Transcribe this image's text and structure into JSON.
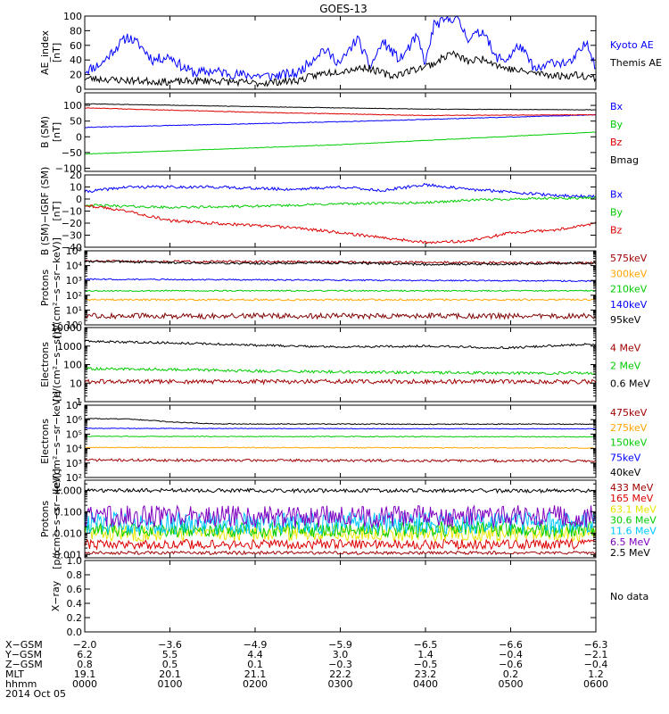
{
  "title": "GOES-13",
  "colors": {
    "black": "#000000",
    "blue": "#0000ff",
    "green": "#00cc00",
    "red": "#dd0000",
    "darkred": "#a00000",
    "orange": "#ffa500",
    "yellow": "#e6e600",
    "cyan": "#00c8ff",
    "purple": "#8000c0",
    "maroon": "#800000"
  },
  "chart_data": [
    {
      "type": "line",
      "id": "ae",
      "ylabel": "AE_index\n[nT]",
      "yscale": "linear",
      "ylim": [
        0,
        100
      ],
      "yticks": [
        0,
        20,
        40,
        60,
        80,
        100
      ],
      "ytick_labels": [
        "0",
        "20",
        "40",
        "60",
        "80",
        "100"
      ],
      "series": [
        {
          "name": "Kyoto AE",
          "color": "blue",
          "x": [
            0,
            0.2,
            0.35,
            0.5,
            0.65,
            0.8,
            1.0,
            1.15,
            1.3,
            1.5,
            1.8,
            2.2,
            2.5,
            2.8,
            3.0,
            3.2,
            3.35,
            3.5,
            3.7,
            3.9,
            4.0,
            4.1,
            4.2,
            4.35,
            4.5,
            4.7,
            4.8,
            4.95,
            5.1,
            5.3,
            5.5,
            5.7,
            5.9,
            6.0
          ],
          "y": [
            25,
            35,
            55,
            72,
            60,
            40,
            45,
            30,
            22,
            25,
            20,
            18,
            22,
            55,
            35,
            70,
            30,
            65,
            40,
            72,
            35,
            88,
            92,
            99,
            70,
            80,
            45,
            40,
            60,
            25,
            38,
            35,
            65,
            30
          ],
          "noise": 7,
          "seed": 11
        },
        {
          "name": "Themis AE",
          "color": "black",
          "x": [
            0,
            0.5,
            1.0,
            1.5,
            2.0,
            2.5,
            2.8,
            3.0,
            3.3,
            3.6,
            3.9,
            4.1,
            4.3,
            4.5,
            4.7,
            4.9,
            5.1,
            5.3,
            5.6,
            5.8,
            6.0
          ],
          "y": [
            15,
            12,
            10,
            12,
            8,
            12,
            22,
            25,
            30,
            18,
            28,
            35,
            50,
            38,
            42,
            30,
            25,
            22,
            18,
            20,
            15
          ],
          "noise": 5,
          "seed": 23
        }
      ]
    },
    {
      "type": "line",
      "id": "bsm",
      "ylabel": "B (SM)\n[nT]",
      "yscale": "linear",
      "ylim": [
        -110,
        140
      ],
      "yticks": [
        -100,
        -50,
        0,
        50,
        100
      ],
      "ytick_labels": [
        "−100",
        "−50",
        "0",
        "50",
        "100"
      ],
      "series": [
        {
          "name": "Bx",
          "color": "blue",
          "x": [
            0,
            3,
            6
          ],
          "y": [
            30,
            48,
            70
          ],
          "noise": 1,
          "seed": 31
        },
        {
          "name": "By",
          "color": "green",
          "x": [
            0,
            3,
            6
          ],
          "y": [
            -55,
            -25,
            15
          ],
          "noise": 0.8,
          "seed": 32
        },
        {
          "name": "Bz",
          "color": "red",
          "x": [
            0,
            2,
            4,
            6
          ],
          "y": [
            92,
            78,
            68,
            70
          ],
          "noise": 1,
          "seed": 33
        },
        {
          "name": "Bmag",
          "color": "black",
          "x": [
            0,
            2,
            4,
            6
          ],
          "y": [
            105,
            96,
            88,
            86
          ],
          "noise": 0.8,
          "seed": 34
        }
      ]
    },
    {
      "type": "line",
      "id": "dbsm",
      "ylabel": "B (SM)−IGRF (SM)\n[nT]",
      "yscale": "linear",
      "ylim": [
        -40,
        20
      ],
      "yticks": [
        -40,
        -30,
        -20,
        -10,
        0,
        10,
        20
      ],
      "ytick_labels": [
        "−40",
        "−30",
        "−20",
        "−10",
        "0",
        "10",
        "20"
      ],
      "series": [
        {
          "name": "Bx",
          "color": "blue",
          "x": [
            0,
            0.5,
            1.5,
            2.4,
            3.0,
            3.5,
            4.0,
            4.5,
            5.0,
            5.5,
            6.0
          ],
          "y": [
            6,
            10,
            10,
            8,
            10,
            7,
            12,
            8,
            6,
            3,
            2
          ],
          "noise": 1.2,
          "seed": 41
        },
        {
          "name": "By",
          "color": "green",
          "x": [
            0,
            1,
            2,
            3,
            4,
            4.5,
            5,
            6
          ],
          "y": [
            -5,
            -7,
            -6,
            -4,
            -3,
            -1,
            0,
            1
          ],
          "noise": 1.0,
          "seed": 42
        },
        {
          "name": "Bz",
          "color": "red",
          "x": [
            0,
            0.5,
            1.0,
            1.5,
            2.0,
            2.5,
            3.0,
            3.5,
            4.0,
            4.5,
            5.0,
            5.5,
            6.0
          ],
          "y": [
            -5,
            -10,
            -18,
            -20,
            -22,
            -24,
            -28,
            -32,
            -36,
            -35,
            -28,
            -26,
            -20
          ],
          "noise": 1.2,
          "seed": 43
        }
      ]
    },
    {
      "type": "line",
      "id": "protons_low",
      "ylabel": "Protons\n[p/(cm²−s−sr−keV)]",
      "yscale": "log",
      "ylim": [
        1,
        100000
      ],
      "yticks": [
        1,
        10,
        100,
        1000,
        10000,
        100000
      ],
      "ytick_labels": [
        "10⁰",
        "10¹",
        "10²",
        "10³",
        "10⁴",
        "10⁵"
      ],
      "series": [
        {
          "name": "575keV",
          "color": "darkred",
          "x": [
            0,
            6
          ],
          "y": [
            20000,
            15000
          ],
          "noise": 0.05,
          "seed": 51
        },
        {
          "name": "300keV",
          "color": "orange",
          "x": [
            0,
            6
          ],
          "y": [
            50,
            50
          ],
          "noise": 0.04,
          "seed": 52
        },
        {
          "name": "210keV",
          "color": "green",
          "x": [
            0,
            6
          ],
          "y": [
            200,
            200
          ],
          "noise": 0.03,
          "seed": 53
        },
        {
          "name": "140keV",
          "color": "blue",
          "x": [
            0,
            6
          ],
          "y": [
            1200,
            900
          ],
          "noise": 0.03,
          "seed": 54
        },
        {
          "name": "95keV",
          "color": "black",
          "x": [
            0,
            1,
            2,
            3,
            4,
            5,
            6
          ],
          "y": [
            20000,
            16000,
            14000,
            15000,
            12000,
            13000,
            15000
          ],
          "noise": 0.05,
          "seed": 55
        },
        {
          "name": "",
          "color": "maroon",
          "x": [
            0,
            6
          ],
          "y": [
            4,
            4
          ],
          "noise": 0.12,
          "seed": 56
        }
      ]
    },
    {
      "type": "line",
      "id": "electrons_mev",
      "ylabel": "Electrons\n[e/(cm²−s−sr)]",
      "yscale": "log",
      "ylim": [
        1,
        10000
      ],
      "yticks": [
        1,
        10,
        100,
        1000,
        10000
      ],
      "ytick_labels": [
        "1",
        "10",
        "100",
        "1000",
        "10000"
      ],
      "series": [
        {
          "name": "4 MeV",
          "color": "darkred",
          "x": [
            0,
            6
          ],
          "y": [
            12,
            12
          ],
          "noise": 0.08,
          "seed": 61
        },
        {
          "name": "2 MeV",
          "color": "green",
          "x": [
            0,
            1,
            2,
            3,
            4,
            5,
            6
          ],
          "y": [
            60,
            55,
            45,
            40,
            38,
            35,
            35
          ],
          "noise": 0.05,
          "seed": 62
        },
        {
          "name": "0.6 MeV",
          "color": "black",
          "x": [
            0,
            1,
            2,
            3,
            4,
            5,
            6
          ],
          "y": [
            1800,
            1500,
            1100,
            900,
            1000,
            800,
            1300
          ],
          "noise": 0.04,
          "seed": 63
        }
      ]
    },
    {
      "type": "line",
      "id": "electrons_kev",
      "ylabel": "Electrons\n[e/(cm²−s−sr−keV)]",
      "yscale": "log",
      "ylim": [
        100,
        10000000
      ],
      "yticks": [
        100,
        1000,
        10000,
        100000,
        1000000,
        10000000
      ],
      "ytick_labels": [
        "10²",
        "10³",
        "10⁴",
        "10⁵",
        "10⁶",
        "10⁷"
      ],
      "series": [
        {
          "name": "475keV",
          "color": "darkred",
          "x": [
            0,
            6
          ],
          "y": [
            1600,
            1400
          ],
          "noise": 0.06,
          "seed": 71
        },
        {
          "name": "275keV",
          "color": "orange",
          "x": [
            0,
            6
          ],
          "y": [
            12000,
            11000
          ],
          "noise": 0.02,
          "seed": 72
        },
        {
          "name": "150keV",
          "color": "green",
          "x": [
            0,
            6
          ],
          "y": [
            70000,
            65000
          ],
          "noise": 0.02,
          "seed": 73
        },
        {
          "name": "75keV",
          "color": "blue",
          "x": [
            0,
            6
          ],
          "y": [
            250000,
            230000
          ],
          "noise": 0.015,
          "seed": 74
        },
        {
          "name": "40keV",
          "color": "black",
          "x": [
            0,
            0.5,
            1,
            1.5,
            2,
            3,
            4,
            5,
            6
          ],
          "y": [
            1200000,
            1100000,
            700000,
            520000,
            500000,
            500000,
            480000,
            500000,
            480000
          ],
          "noise": 0.02,
          "seed": 75
        }
      ]
    },
    {
      "type": "line",
      "id": "protons_mev",
      "ylabel": "Protons\n[p/(cm²−s−sr−keV)]",
      "yscale": "log",
      "ylim": [
        0.0007,
        3
      ],
      "yticks": [
        0.001,
        0.01,
        0.1,
        1
      ],
      "ytick_labels": [
        "0.001",
        "0.010",
        "0.100",
        "1.000"
      ],
      "series": [
        {
          "name": "433 MeV",
          "color": "darkred",
          "x": [
            0,
            6
          ],
          "y": [
            0.0012,
            0.0012
          ],
          "noise": 0.05,
          "seed": 81
        },
        {
          "name": "165 MeV",
          "color": "red",
          "x": [
            0,
            6
          ],
          "y": [
            0.003,
            0.003
          ],
          "noise": 0.15,
          "seed": 82
        },
        {
          "name": "63.1 MeV",
          "color": "yellow",
          "x": [
            0,
            6
          ],
          "y": [
            0.01,
            0.01
          ],
          "noise": 0.25,
          "seed": 83
        },
        {
          "name": "30.6 MeV",
          "color": "green",
          "x": [
            0,
            6
          ],
          "y": [
            0.015,
            0.015
          ],
          "noise": 0.25,
          "seed": 84
        },
        {
          "name": "11.6 MeV",
          "color": "cyan",
          "x": [
            0,
            6
          ],
          "y": [
            0.03,
            0.03
          ],
          "noise": 0.35,
          "seed": 85
        },
        {
          "name": "6.5 MeV",
          "color": "purple",
          "x": [
            0,
            6
          ],
          "y": [
            0.06,
            0.06
          ],
          "noise": 0.35,
          "seed": 86
        },
        {
          "name": "2.5 MeV",
          "color": "black",
          "x": [
            0,
            6
          ],
          "y": [
            1.0,
            0.95
          ],
          "noise": 0.06,
          "seed": 87
        }
      ]
    },
    {
      "type": "line",
      "id": "xray",
      "ylabel": "X−ray",
      "yscale": "linear",
      "ylim": [
        0,
        1
      ],
      "yticks": [
        0,
        0.2,
        0.4,
        0.6,
        0.8,
        1.0
      ],
      "ytick_labels": [
        "0.0",
        "0.2",
        "0.4",
        "0.6",
        "0.8",
        "1.0"
      ],
      "series": [],
      "note": "No data"
    }
  ],
  "x_axis": {
    "ticks": [
      0,
      1,
      2,
      3,
      4,
      5,
      6
    ],
    "rows": [
      {
        "label": "X−GSM",
        "values": [
          "−2.0",
          "−3.6",
          "−4.9",
          "−5.9",
          "−6.5",
          "−6.6",
          "−6.3"
        ]
      },
      {
        "label": "Y−GSM",
        "values": [
          "6.2",
          "5.5",
          "4.4",
          "3.0",
          "1.4",
          "−0.4",
          "−2.1"
        ]
      },
      {
        "label": "Z−GSM",
        "values": [
          "0.8",
          "0.5",
          "0.1",
          "−0.3",
          "−0.5",
          "−0.6",
          "−0.4"
        ]
      },
      {
        "label": "MLT",
        "values": [
          "19.1",
          "20.1",
          "21.1",
          "22.2",
          "23.2",
          "0.2",
          "1.2"
        ]
      },
      {
        "label": "hhmm",
        "values": [
          "0000",
          "0100",
          "0200",
          "0300",
          "0400",
          "0500",
          "0600"
        ]
      }
    ],
    "date": "2014 Oct 05"
  }
}
